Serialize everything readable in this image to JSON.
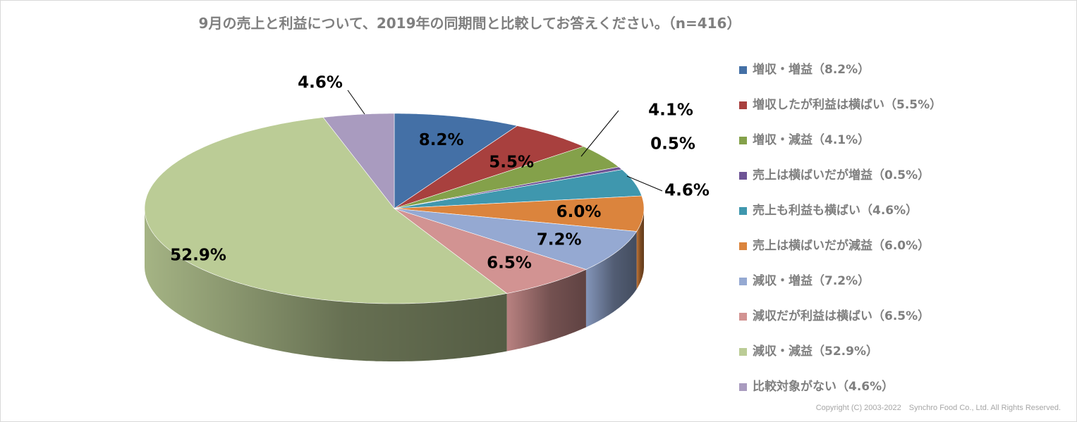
{
  "chart_data": {
    "type": "pie",
    "title": "9月の売上と利益について、2019年の同期間と比較してお答えください。（n=416）",
    "legend_position": "right",
    "slices": [
      {
        "label": "増収・増益（8.2%）",
        "value": 8.2,
        "data_label": "8.2%",
        "color": "#4470A6"
      },
      {
        "label": "増収したが利益は横ばい（5.5%）",
        "value": 5.5,
        "data_label": "5.5%",
        "color": "#A8403E"
      },
      {
        "label": "増収・減益（4.1%）",
        "value": 4.1,
        "data_label": "4.1%",
        "color": "#84A14A"
      },
      {
        "label": "売上は横ばいだが増益（0.5%）",
        "value": 0.5,
        "data_label": "0.5%",
        "color": "#6E5496"
      },
      {
        "label": "売上も利益も横ばい（4.6%）",
        "value": 4.6,
        "data_label": "4.6%",
        "color": "#3F97AE"
      },
      {
        "label": "売上は横ばいだが減益（6.0%）",
        "value": 6.0,
        "data_label": "6.0%",
        "color": "#DB843D"
      },
      {
        "label": "減収・増益（7.2%）",
        "value": 7.2,
        "data_label": "7.2%",
        "color": "#95A9D2"
      },
      {
        "label": "減収だが利益は横ばい（6.5%）",
        "value": 6.5,
        "data_label": "6.5%",
        "color": "#D29392"
      },
      {
        "label": "減収・減益（52.9%）",
        "value": 52.9,
        "data_label": "52.9%",
        "color": "#BBCC96"
      },
      {
        "label": "比較対象がない（4.6%）",
        "value": 4.6,
        "data_label": "4.6%",
        "color": "#A99BBF"
      }
    ]
  },
  "footer": {
    "copyright": "Copyright (C) 2003-2022　Synchro Food Co., Ltd. All Rights Reserved."
  }
}
